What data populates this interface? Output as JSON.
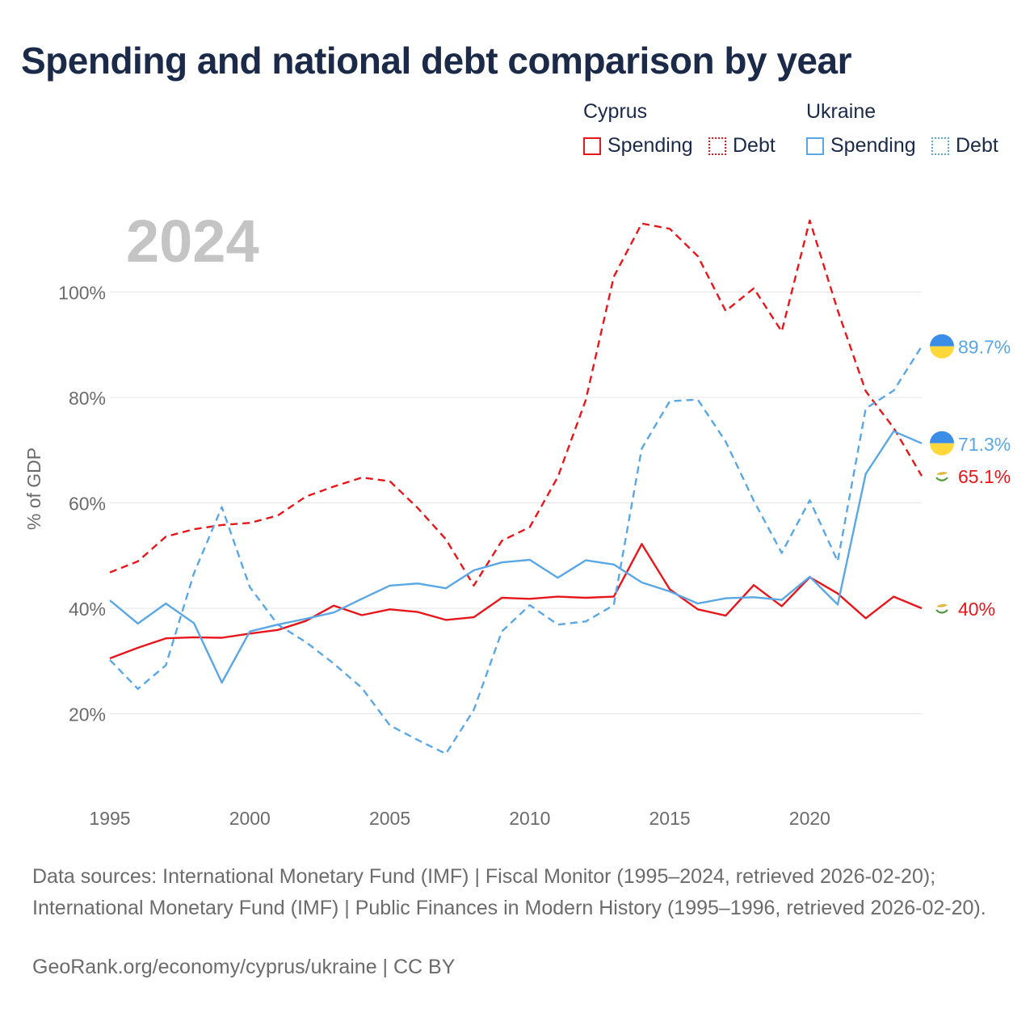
{
  "title": "Spending and national debt comparison by year",
  "legend": {
    "cyprus_label": "Cyprus",
    "ukraine_label": "Ukraine",
    "cyprus_spending": "Spending",
    "cyprus_debt": "Debt",
    "ukraine_spending": "Spending",
    "ukraine_debt": "Debt"
  },
  "colors": {
    "cyprus": "#e8161b",
    "ukraine": "#5aa7e6",
    "grid": "#e6e6e6",
    "year": "#c4c4c4"
  },
  "footer": {
    "sources": "Data sources: International Monetary Fund (IMF) | Fiscal Monitor (1995–2024, retrieved 2026-02-20); International Monetary Fund (IMF) | Public Finances in Modern History (1995–1996, retrieved 2026-02-20).",
    "credit": "GeoRank.org/economy/cyprus/ukraine | CC BY"
  },
  "chart_data": {
    "type": "line",
    "year_label": "2024",
    "ylabel": "% of GDP",
    "xlim": [
      1995,
      2024
    ],
    "ylim": [
      7,
      115
    ],
    "y_ticks": [
      20,
      40,
      60,
      80,
      100
    ],
    "y_tick_labels": [
      "20%",
      "40%",
      "60%",
      "80%",
      "100%"
    ],
    "x_ticks": [
      1995,
      2000,
      2005,
      2010,
      2015,
      2020
    ],
    "x_tick_labels": [
      "1995",
      "2000",
      "2005",
      "2010",
      "2015",
      "2020"
    ],
    "x": [
      1995,
      1996,
      1997,
      1998,
      1999,
      2000,
      2001,
      2002,
      2003,
      2004,
      2005,
      2006,
      2007,
      2008,
      2009,
      2010,
      2011,
      2012,
      2013,
      2014,
      2015,
      2016,
      2017,
      2018,
      2019,
      2020,
      2021,
      2022,
      2023,
      2024
    ],
    "series": [
      {
        "name": "Cyprus Debt",
        "country": "cyprus",
        "style": "dashed",
        "values": [
          46.8,
          48.9,
          53.6,
          55.0,
          55.8,
          56.2,
          57.6,
          61.2,
          63.1,
          64.8,
          64.1,
          59.0,
          53.1,
          44.3,
          52.8,
          55.4,
          64.9,
          79.5,
          102.9,
          113.0,
          112.0,
          106.8,
          96.4,
          100.7,
          92.5,
          113.6,
          96.5,
          81.2,
          74.2,
          65.1
        ],
        "end_label": "65.1%"
      },
      {
        "name": "Cyprus Spending",
        "country": "cyprus",
        "style": "solid",
        "values": [
          30.5,
          32.5,
          34.3,
          34.5,
          34.4,
          35.2,
          35.9,
          37.6,
          40.5,
          38.7,
          39.8,
          39.3,
          37.8,
          38.3,
          42.0,
          41.8,
          42.2,
          42.0,
          42.2,
          52.2,
          43.6,
          39.8,
          38.6,
          44.4,
          40.4,
          45.9,
          42.8,
          38.1,
          42.2,
          40.0
        ],
        "end_label": "40%"
      },
      {
        "name": "Ukraine Debt",
        "country": "ukraine",
        "style": "dashed",
        "values": [
          30.2,
          24.7,
          29.2,
          46.6,
          59.2,
          44.0,
          36.9,
          33.6,
          29.5,
          24.9,
          17.8,
          15.0,
          12.4,
          20.7,
          35.6,
          40.6,
          36.9,
          37.5,
          40.6,
          70.3,
          79.3,
          79.6,
          71.6,
          60.4,
          50.5,
          60.5,
          48.9,
          77.9,
          81.3,
          89.7
        ],
        "end_label": "89.7%"
      },
      {
        "name": "Ukraine Spending",
        "country": "ukraine",
        "style": "solid",
        "values": [
          41.5,
          37.1,
          40.9,
          37.2,
          25.9,
          35.6,
          36.9,
          38.0,
          39.2,
          41.8,
          44.3,
          44.7,
          43.8,
          47.2,
          48.7,
          49.2,
          45.8,
          49.1,
          48.3,
          44.9,
          43.2,
          40.9,
          41.9,
          42.1,
          41.6,
          46.0,
          40.7,
          65.5,
          73.6,
          71.3
        ],
        "end_label": "71.3%"
      }
    ]
  }
}
